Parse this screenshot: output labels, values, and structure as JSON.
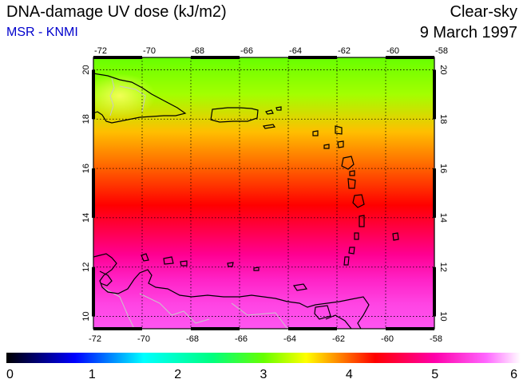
{
  "header": {
    "title": "DNA-damage UV dose (kJ/m2)",
    "subtitle": "MSR - KNMI",
    "sky": "Clear-sky",
    "date": "9 March 1997"
  },
  "map": {
    "lon_ticks": [
      -72,
      -70,
      -68,
      -66,
      -64,
      -62,
      -60,
      -58
    ],
    "lat_ticks": [
      10,
      12,
      14,
      16,
      18,
      20
    ],
    "lon_range": [
      -72,
      -58
    ],
    "lat_range": [
      9.5,
      20.5
    ],
    "dose_field": [
      {
        "lat": 20.5,
        "value": 3.0
      },
      {
        "lat": 19.0,
        "value": 3.2
      },
      {
        "lat": 17.5,
        "value": 3.7
      },
      {
        "lat": 16.0,
        "value": 4.0
      },
      {
        "lat": 14.5,
        "value": 4.3
      },
      {
        "lat": 13.5,
        "value": 4.6
      },
      {
        "lat": 12.5,
        "value": 4.9
      },
      {
        "lat": 11.5,
        "value": 5.2
      },
      {
        "lat": 10.5,
        "value": 5.4
      },
      {
        "lat": 9.5,
        "value": 5.5
      }
    ]
  },
  "colorbar": {
    "labels": [
      "0",
      "1",
      "2",
      "3",
      "4",
      "5",
      "6"
    ],
    "stops": [
      {
        "value": 0,
        "color": "#000000"
      },
      {
        "value": 0.8,
        "color": "#0000ff"
      },
      {
        "value": 1.6,
        "color": "#00ffff"
      },
      {
        "value": 2.4,
        "color": "#00ff80"
      },
      {
        "value": 3.0,
        "color": "#66ff00"
      },
      {
        "value": 3.5,
        "color": "#ffff00"
      },
      {
        "value": 4.3,
        "color": "#ff0000"
      },
      {
        "value": 5.0,
        "color": "#ff00aa"
      },
      {
        "value": 5.6,
        "color": "#ff66ff"
      },
      {
        "value": 6,
        "color": "#ffffff"
      }
    ]
  },
  "colors": {
    "coastline": "#000000",
    "borders": "#c8c8c8",
    "grid": "#000000"
  }
}
